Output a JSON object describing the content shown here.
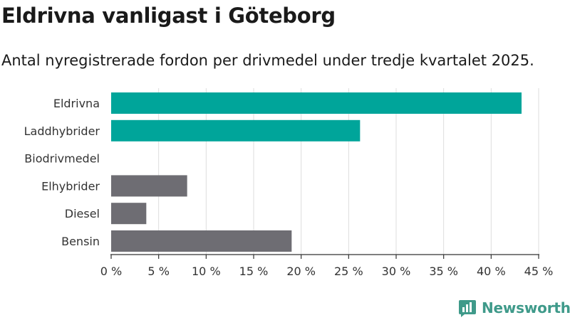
{
  "title": "Eldrivna vanligast i Göteborg",
  "subtitle": "Antal nyregistrerade fordon per drivmedel under tredje kvartalet 2025.",
  "brand": {
    "name": "Newsworthy",
    "color": "#3f9a8a",
    "icon": "bar-chart-bubble-icon"
  },
  "chart_data": {
    "type": "bar",
    "orientation": "horizontal",
    "categories": [
      "Eldrivna",
      "Laddhybrider",
      "Biodrivmedel",
      "Elhybrider",
      "Diesel",
      "Bensin"
    ],
    "values": [
      43.2,
      26.2,
      0,
      8.0,
      3.7,
      19.0
    ],
    "colors": [
      "#00a59a",
      "#00a59a",
      "#00a59a",
      "#6e6d73",
      "#6e6d73",
      "#6e6d73"
    ],
    "xlim": [
      0,
      45
    ],
    "xticks": [
      0,
      5,
      10,
      15,
      20,
      25,
      30,
      35,
      40,
      45
    ],
    "tick_labels": [
      "0 %",
      "5 %",
      "10 %",
      "15 %",
      "20 %",
      "25 %",
      "30 %",
      "35 %",
      "40 %",
      "45 %"
    ],
    "xlabel": "",
    "ylabel": "",
    "grid": true,
    "gridline_color": "#dddddd"
  }
}
